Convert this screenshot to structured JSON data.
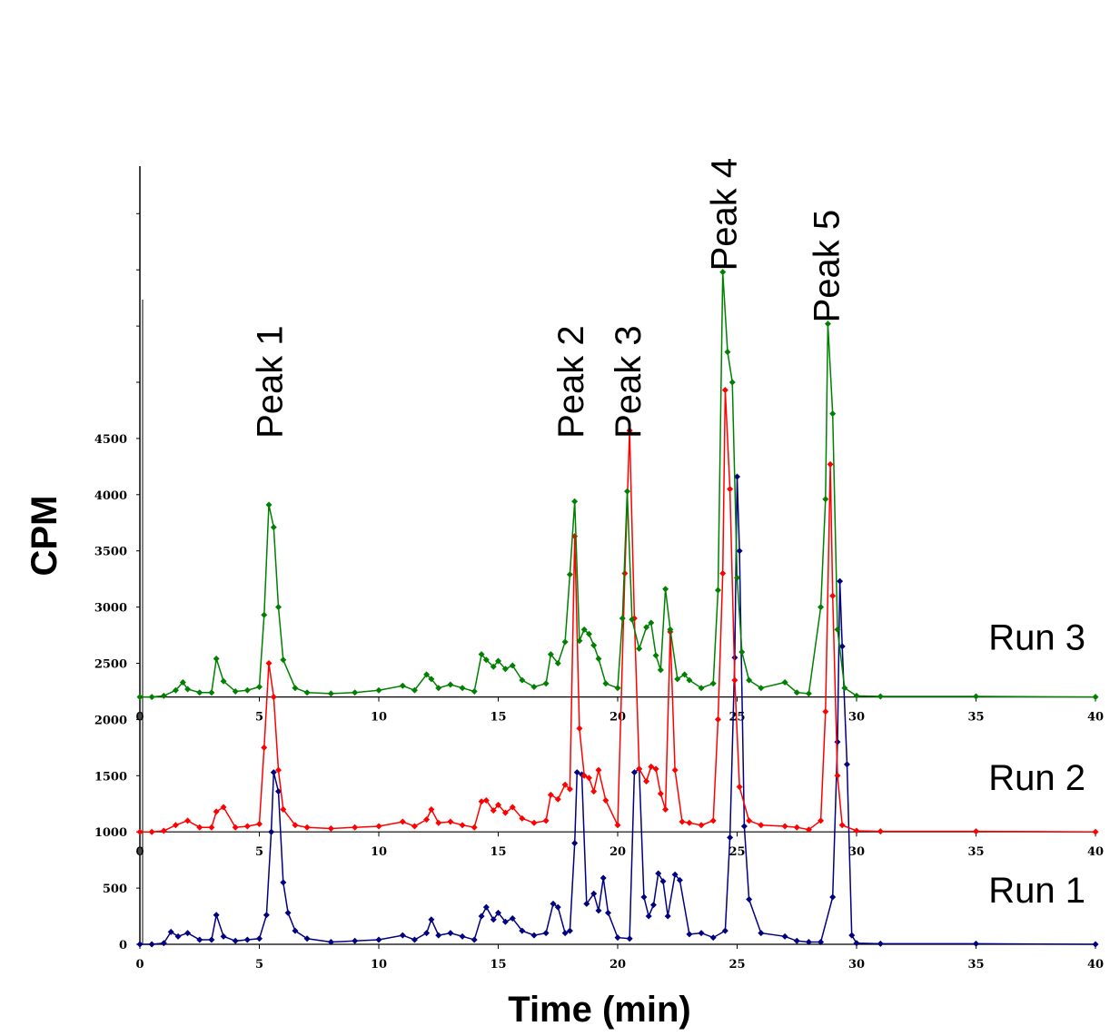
{
  "chart_data": {
    "type": "line",
    "title": "",
    "xlabel": "Time (min)",
    "ylabel": "CPM",
    "xlim": [
      0,
      40
    ],
    "xticks": [
      0,
      5,
      10,
      15,
      20,
      25,
      30,
      35,
      40
    ],
    "y_offsets": [
      0,
      1000,
      2200
    ],
    "yticks": [
      {
        "value": 0,
        "label": "0"
      },
      {
        "value": 500,
        "label": "500"
      },
      {
        "value": 1000,
        "label": "1000"
      },
      {
        "value": 1500,
        "label": "1500"
      },
      {
        "value": 2000,
        "label": "2000"
      },
      {
        "value": 2500,
        "label": "2500"
      },
      {
        "value": 3000,
        "label": "3000"
      },
      {
        "value": 3500,
        "label": "3500"
      },
      {
        "value": 4000,
        "label": "4000"
      },
      {
        "value": 4500,
        "label": "4500"
      }
    ],
    "annotations": [
      {
        "text": "Peak 1",
        "x": 5.5,
        "y": 4500
      },
      {
        "text": "Peak 2",
        "x": 18.1,
        "y": 4500
      },
      {
        "text": "Peak 3",
        "x": 20.5,
        "y": 4500
      },
      {
        "text": "Peak 4",
        "x": 24.5,
        "y": 5990
      },
      {
        "text": "Peak 5",
        "x": 28.8,
        "y": 5530
      }
    ],
    "series": [
      {
        "name": "Run 1",
        "color": "#000080",
        "points": [
          [
            0,
            0
          ],
          [
            0.5,
            0
          ],
          [
            1.0,
            10
          ],
          [
            1.3,
            110
          ],
          [
            1.6,
            70
          ],
          [
            2.0,
            100
          ],
          [
            2.5,
            40
          ],
          [
            3.0,
            40
          ],
          [
            3.2,
            260
          ],
          [
            3.5,
            70
          ],
          [
            4.0,
            30
          ],
          [
            4.5,
            40
          ],
          [
            5.0,
            50
          ],
          [
            5.3,
            260
          ],
          [
            5.5,
            1000
          ],
          [
            5.6,
            1530
          ],
          [
            5.8,
            1360
          ],
          [
            6.0,
            550
          ],
          [
            6.2,
            280
          ],
          [
            6.5,
            120
          ],
          [
            7.0,
            50
          ],
          [
            8.0,
            20
          ],
          [
            9.0,
            30
          ],
          [
            10.0,
            40
          ],
          [
            11.0,
            80
          ],
          [
            11.5,
            40
          ],
          [
            12.0,
            100
          ],
          [
            12.2,
            220
          ],
          [
            12.5,
            80
          ],
          [
            13.0,
            100
          ],
          [
            13.5,
            70
          ],
          [
            14.0,
            40
          ],
          [
            14.3,
            250
          ],
          [
            14.5,
            330
          ],
          [
            14.8,
            220
          ],
          [
            15.0,
            280
          ],
          [
            15.3,
            200
          ],
          [
            15.6,
            230
          ],
          [
            16.0,
            120
          ],
          [
            16.5,
            80
          ],
          [
            17.0,
            100
          ],
          [
            17.3,
            360
          ],
          [
            17.5,
            330
          ],
          [
            17.8,
            100
          ],
          [
            18.0,
            120
          ],
          [
            18.2,
            900
          ],
          [
            18.3,
            1530
          ],
          [
            18.5,
            1510
          ],
          [
            18.7,
            360
          ],
          [
            19.0,
            450
          ],
          [
            19.2,
            300
          ],
          [
            19.4,
            590
          ],
          [
            19.6,
            280
          ],
          [
            20.0,
            60
          ],
          [
            20.5,
            50
          ],
          [
            20.7,
            1530
          ],
          [
            20.9,
            1560
          ],
          [
            21.1,
            420
          ],
          [
            21.3,
            250
          ],
          [
            21.5,
            350
          ],
          [
            21.7,
            630
          ],
          [
            21.9,
            560
          ],
          [
            22.1,
            250
          ],
          [
            22.4,
            620
          ],
          [
            22.6,
            570
          ],
          [
            23.0,
            90
          ],
          [
            23.5,
            100
          ],
          [
            24.0,
            60
          ],
          [
            24.5,
            120
          ],
          [
            24.7,
            950
          ],
          [
            24.9,
            2550
          ],
          [
            25.0,
            4160
          ],
          [
            25.1,
            3500
          ],
          [
            25.3,
            1050
          ],
          [
            25.5,
            400
          ],
          [
            26.0,
            100
          ],
          [
            27.0,
            70
          ],
          [
            27.5,
            30
          ],
          [
            28.0,
            20
          ],
          [
            28.5,
            20
          ],
          [
            29.0,
            420
          ],
          [
            29.2,
            1800
          ],
          [
            29.3,
            3230
          ],
          [
            29.4,
            2650
          ],
          [
            29.6,
            1600
          ],
          [
            29.8,
            80
          ],
          [
            30.0,
            10
          ],
          [
            31.0,
            5
          ],
          [
            35.0,
            5
          ],
          [
            40.0,
            0
          ]
        ]
      },
      {
        "name": "Run 2",
        "color": "#ff0000",
        "points": [
          [
            0,
            0
          ],
          [
            0.5,
            0
          ],
          [
            1.0,
            10
          ],
          [
            1.5,
            60
          ],
          [
            2.0,
            100
          ],
          [
            2.5,
            40
          ],
          [
            3.0,
            40
          ],
          [
            3.2,
            180
          ],
          [
            3.5,
            220
          ],
          [
            4.0,
            40
          ],
          [
            4.5,
            50
          ],
          [
            5.0,
            70
          ],
          [
            5.2,
            750
          ],
          [
            5.4,
            1500
          ],
          [
            5.6,
            1200
          ],
          [
            5.8,
            550
          ],
          [
            6.0,
            200
          ],
          [
            6.5,
            60
          ],
          [
            7.0,
            40
          ],
          [
            8.0,
            30
          ],
          [
            9.0,
            40
          ],
          [
            10.0,
            50
          ],
          [
            11.0,
            90
          ],
          [
            11.5,
            50
          ],
          [
            12.0,
            110
          ],
          [
            12.2,
            200
          ],
          [
            12.5,
            80
          ],
          [
            13.0,
            90
          ],
          [
            13.5,
            60
          ],
          [
            14.0,
            40
          ],
          [
            14.3,
            270
          ],
          [
            14.5,
            280
          ],
          [
            14.8,
            190
          ],
          [
            15.0,
            240
          ],
          [
            15.3,
            170
          ],
          [
            15.6,
            220
          ],
          [
            16.0,
            120
          ],
          [
            16.5,
            80
          ],
          [
            17.0,
            100
          ],
          [
            17.2,
            330
          ],
          [
            17.5,
            290
          ],
          [
            17.8,
            420
          ],
          [
            18.0,
            380
          ],
          [
            18.2,
            2630
          ],
          [
            18.4,
            920
          ],
          [
            18.6,
            500
          ],
          [
            18.8,
            480
          ],
          [
            19.0,
            360
          ],
          [
            19.2,
            550
          ],
          [
            19.5,
            280
          ],
          [
            20.0,
            60
          ],
          [
            20.3,
            2300
          ],
          [
            20.5,
            3570
          ],
          [
            20.7,
            1900
          ],
          [
            20.9,
            560
          ],
          [
            21.2,
            450
          ],
          [
            21.4,
            580
          ],
          [
            21.6,
            560
          ],
          [
            21.8,
            340
          ],
          [
            22.0,
            200
          ],
          [
            22.2,
            1780
          ],
          [
            22.4,
            550
          ],
          [
            22.7,
            90
          ],
          [
            23.0,
            80
          ],
          [
            23.5,
            60
          ],
          [
            24.0,
            100
          ],
          [
            24.2,
            1000
          ],
          [
            24.4,
            2300
          ],
          [
            24.5,
            3930
          ],
          [
            24.7,
            3050
          ],
          [
            24.9,
            1350
          ],
          [
            25.1,
            400
          ],
          [
            25.5,
            100
          ],
          [
            26.0,
            60
          ],
          [
            27.0,
            50
          ],
          [
            27.5,
            40
          ],
          [
            28.0,
            20
          ],
          [
            28.5,
            100
          ],
          [
            28.7,
            1070
          ],
          [
            28.9,
            3270
          ],
          [
            29.0,
            2100
          ],
          [
            29.2,
            500
          ],
          [
            29.4,
            60
          ],
          [
            30.0,
            10
          ],
          [
            31.0,
            5
          ],
          [
            35.0,
            5
          ],
          [
            40.0,
            0
          ]
        ]
      },
      {
        "name": "Run 3",
        "color": "#008000",
        "points": [
          [
            0,
            0
          ],
          [
            0.5,
            0
          ],
          [
            1.0,
            10
          ],
          [
            1.5,
            60
          ],
          [
            1.8,
            130
          ],
          [
            2.0,
            70
          ],
          [
            2.5,
            40
          ],
          [
            3.0,
            40
          ],
          [
            3.2,
            340
          ],
          [
            3.5,
            140
          ],
          [
            4.0,
            50
          ],
          [
            4.5,
            60
          ],
          [
            5.0,
            90
          ],
          [
            5.2,
            730
          ],
          [
            5.4,
            1710
          ],
          [
            5.6,
            1510
          ],
          [
            5.8,
            800
          ],
          [
            6.0,
            330
          ],
          [
            6.5,
            80
          ],
          [
            7.0,
            40
          ],
          [
            8.0,
            30
          ],
          [
            9.0,
            40
          ],
          [
            10.0,
            60
          ],
          [
            11.0,
            100
          ],
          [
            11.5,
            60
          ],
          [
            12.0,
            200
          ],
          [
            12.2,
            160
          ],
          [
            12.5,
            80
          ],
          [
            13.0,
            110
          ],
          [
            13.5,
            80
          ],
          [
            14.0,
            50
          ],
          [
            14.3,
            380
          ],
          [
            14.5,
            330
          ],
          [
            14.8,
            270
          ],
          [
            15.0,
            320
          ],
          [
            15.3,
            250
          ],
          [
            15.6,
            280
          ],
          [
            16.0,
            150
          ],
          [
            16.5,
            90
          ],
          [
            17.0,
            120
          ],
          [
            17.2,
            380
          ],
          [
            17.5,
            300
          ],
          [
            17.8,
            490
          ],
          [
            18.0,
            1090
          ],
          [
            18.2,
            1740
          ],
          [
            18.4,
            500
          ],
          [
            18.6,
            600
          ],
          [
            18.8,
            560
          ],
          [
            19.0,
            460
          ],
          [
            19.2,
            340
          ],
          [
            19.5,
            120
          ],
          [
            20.0,
            80
          ],
          [
            20.2,
            700
          ],
          [
            20.4,
            1830
          ],
          [
            20.6,
            690
          ],
          [
            20.9,
            430
          ],
          [
            21.2,
            620
          ],
          [
            21.4,
            660
          ],
          [
            21.6,
            370
          ],
          [
            21.8,
            240
          ],
          [
            22.0,
            960
          ],
          [
            22.2,
            600
          ],
          [
            22.5,
            160
          ],
          [
            22.8,
            200
          ],
          [
            23.0,
            150
          ],
          [
            23.5,
            80
          ],
          [
            24.0,
            120
          ],
          [
            24.2,
            950
          ],
          [
            24.4,
            3780
          ],
          [
            24.6,
            3070
          ],
          [
            24.8,
            2800
          ],
          [
            25.0,
            1060
          ],
          [
            25.2,
            400
          ],
          [
            25.5,
            150
          ],
          [
            26.0,
            80
          ],
          [
            27.0,
            130
          ],
          [
            27.5,
            40
          ],
          [
            28.0,
            30
          ],
          [
            28.5,
            800
          ],
          [
            28.7,
            1760
          ],
          [
            28.8,
            3320
          ],
          [
            29.0,
            2520
          ],
          [
            29.2,
            600
          ],
          [
            29.5,
            80
          ],
          [
            30.0,
            10
          ],
          [
            31.0,
            5
          ],
          [
            35.0,
            5
          ],
          [
            40.0,
            0
          ]
        ]
      }
    ],
    "series_labels": [
      {
        "text": "Run 1",
        "y": 485
      },
      {
        "text": "Run 2",
        "y": 1485
      },
      {
        "text": "Run 3",
        "y": 2735
      }
    ]
  }
}
